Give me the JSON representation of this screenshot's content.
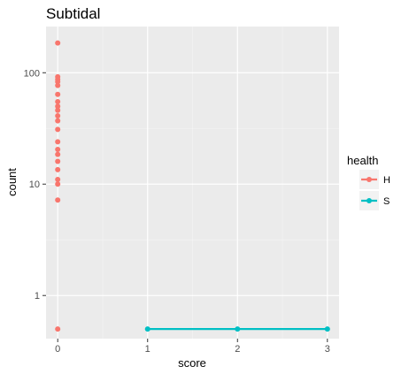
{
  "chart_data": {
    "type": "scatter",
    "title": "Subtidal",
    "xlabel": "score",
    "ylabel": "count",
    "x_ticks": [
      0,
      1,
      2,
      3
    ],
    "y_ticks": [
      1,
      10,
      100
    ],
    "y_scale": "log10",
    "xlim": [
      -0.13,
      3.13
    ],
    "ylim": [
      0.41,
      260
    ],
    "grid": true,
    "legend": {
      "title": "health",
      "placement": "right",
      "entries": [
        "H",
        "S"
      ]
    },
    "series": [
      {
        "name": "H",
        "color": "#F8766D",
        "style": "points",
        "points": [
          [
            0,
            185
          ],
          [
            0,
            92
          ],
          [
            0,
            87
          ],
          [
            0,
            83
          ],
          [
            0,
            77
          ],
          [
            0,
            64
          ],
          [
            0,
            55
          ],
          [
            0,
            50
          ],
          [
            0,
            46
          ],
          [
            0,
            41
          ],
          [
            0,
            37
          ],
          [
            0,
            31
          ],
          [
            0,
            24
          ],
          [
            0,
            20.5
          ],
          [
            0,
            18.5
          ],
          [
            0,
            16
          ],
          [
            0,
            13.5
          ],
          [
            0,
            11
          ],
          [
            0,
            10
          ],
          [
            0,
            7.2
          ],
          [
            0,
            0.5
          ]
        ]
      },
      {
        "name": "S",
        "color": "#00BFC4",
        "style": "line+points",
        "points": [
          [
            1,
            0.5
          ],
          [
            2,
            0.5
          ],
          [
            3,
            0.5
          ]
        ]
      }
    ]
  }
}
